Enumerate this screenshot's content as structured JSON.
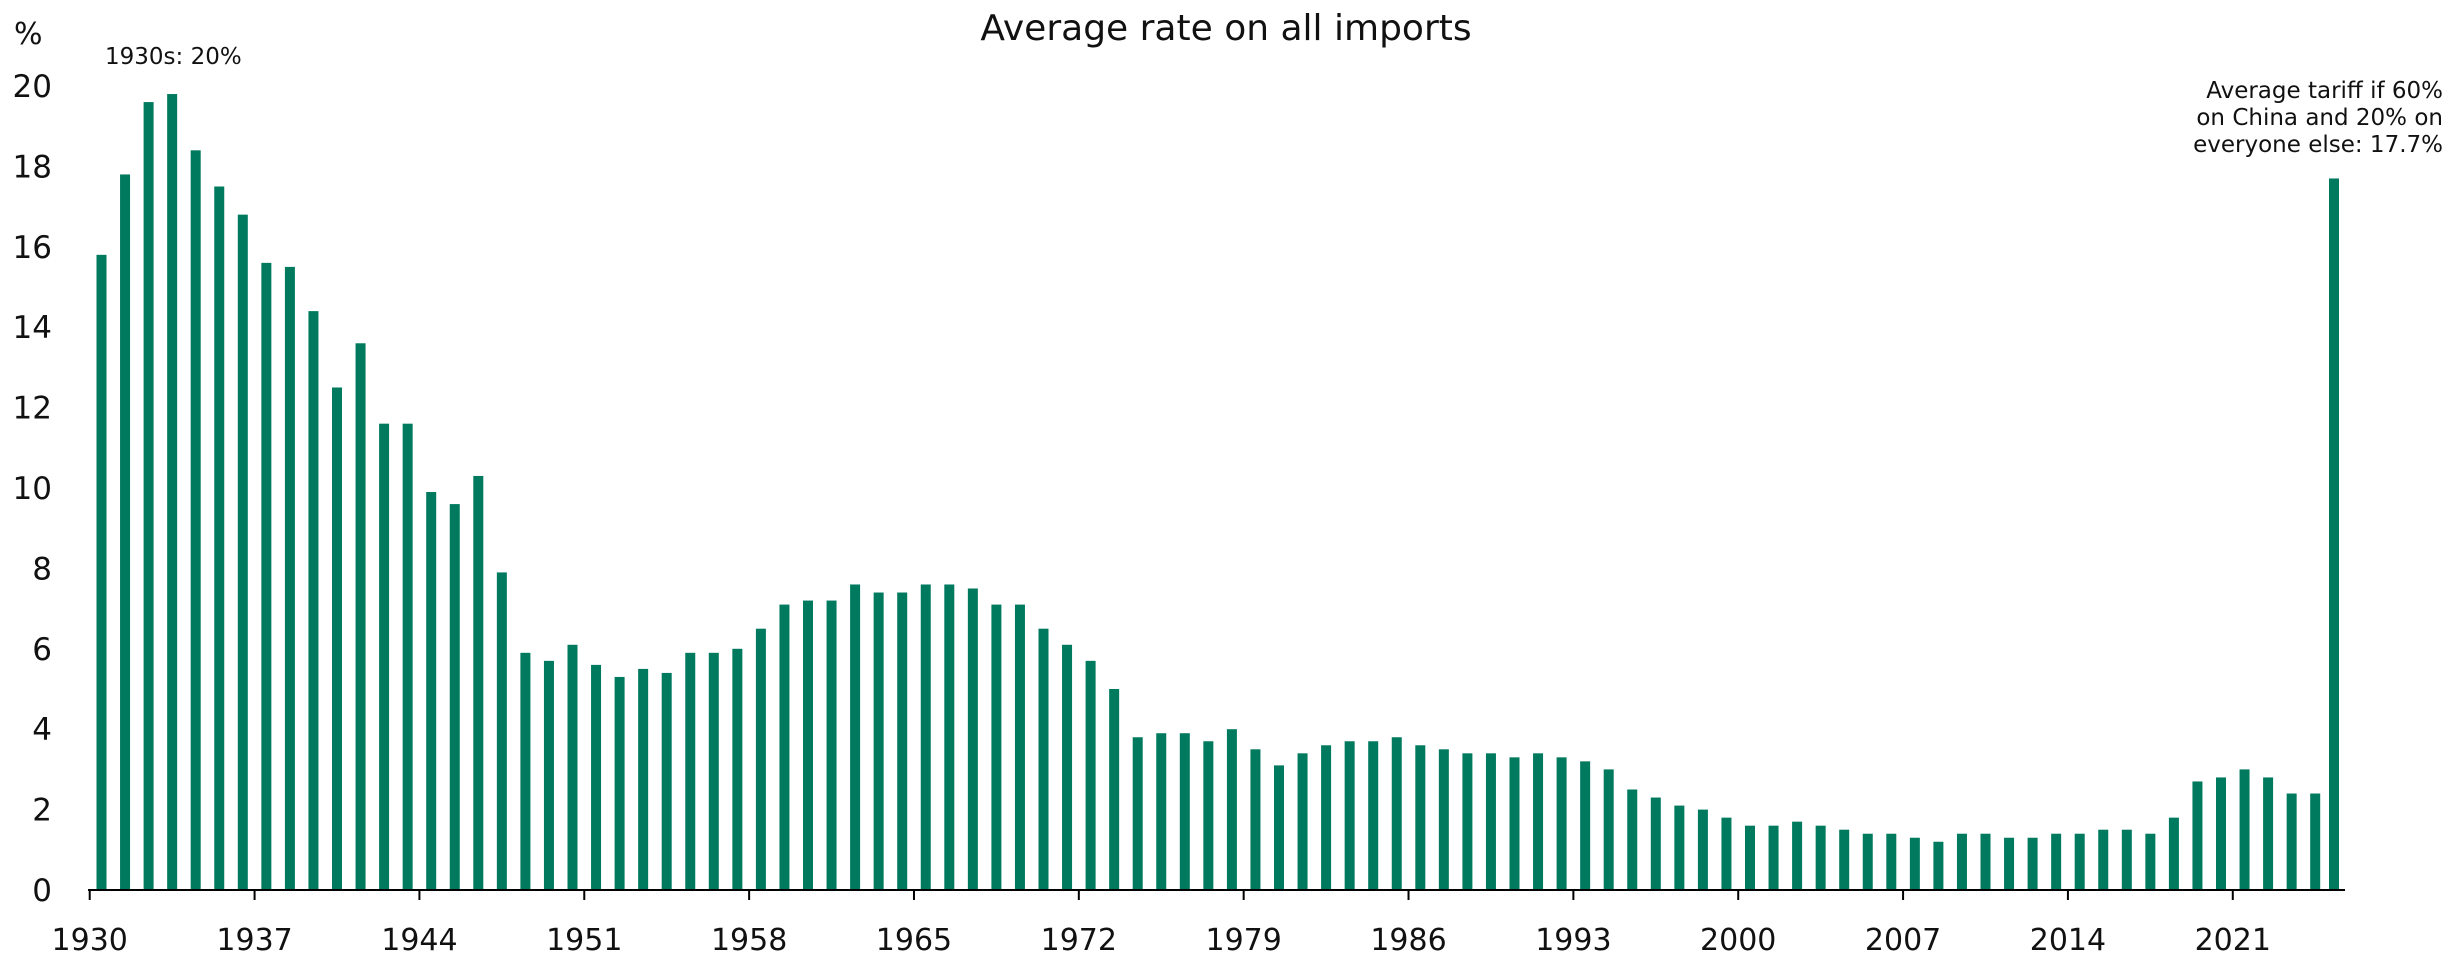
{
  "chart_data": {
    "type": "bar",
    "title": "Average rate on all imports",
    "ylabel": "%",
    "xlabel": "",
    "ylim": [
      0,
      20
    ],
    "yticks": [
      0,
      2,
      4,
      6,
      8,
      10,
      12,
      14,
      16,
      18,
      20
    ],
    "xticks": [
      "1930",
      "1937",
      "1944",
      "1951",
      "1958",
      "1965",
      "1972",
      "1979",
      "1986",
      "1993",
      "2000",
      "2007",
      "2014",
      "2021"
    ],
    "x_axis_year_start": 1930,
    "grid": false,
    "legend": "none",
    "bar_color": "#007A5E",
    "annotations": [
      {
        "text": "1930s: 20%",
        "anchor": "top-left"
      },
      {
        "lines": [
          "Average tariff if 60%",
          "on China and 20% on",
          "everyone else: 17.7%"
        ],
        "anchor": "last-bar"
      }
    ],
    "years": [
      1930,
      1931,
      1932,
      1933,
      1934,
      1935,
      1936,
      1937,
      1938,
      1939,
      1940,
      1941,
      1942,
      1943,
      1944,
      1945,
      1946,
      1947,
      1948,
      1949,
      1950,
      1951,
      1952,
      1953,
      1954,
      1955,
      1956,
      1957,
      1958,
      1959,
      1960,
      1961,
      1962,
      1963,
      1964,
      1965,
      1966,
      1967,
      1968,
      1969,
      1970,
      1971,
      1972,
      1973,
      1974,
      1975,
      1976,
      1977,
      1978,
      1979,
      1980,
      1981,
      1982,
      1983,
      1984,
      1985,
      1986,
      1987,
      1988,
      1989,
      1990,
      1991,
      1992,
      1993,
      1994,
      1995,
      1996,
      1997,
      1998,
      1999,
      2000,
      2001,
      2002,
      2003,
      2004,
      2005,
      2006,
      2007,
      2008,
      2009,
      2010,
      2011,
      2012,
      2013,
      2014,
      2015,
      2016,
      2017,
      2018,
      2019,
      2020,
      2021,
      2022,
      2023,
      2024
    ],
    "values": [
      15.8,
      17.8,
      19.6,
      19.8,
      18.4,
      17.5,
      16.8,
      15.6,
      15.5,
      14.4,
      12.5,
      13.6,
      11.6,
      11.6,
      9.9,
      9.6,
      10.3,
      7.9,
      5.9,
      5.7,
      6.1,
      5.6,
      5.3,
      5.5,
      5.4,
      5.9,
      5.9,
      6.0,
      6.5,
      7.1,
      7.2,
      7.2,
      7.6,
      7.4,
      7.4,
      7.6,
      7.6,
      7.5,
      7.1,
      7.1,
      6.5,
      6.1,
      5.7,
      5.0,
      3.8,
      3.9,
      3.9,
      3.7,
      4.0,
      3.5,
      3.1,
      3.4,
      3.6,
      3.7,
      3.7,
      3.8,
      3.6,
      3.5,
      3.4,
      3.4,
      3.3,
      3.4,
      3.3,
      3.2,
      3.0,
      2.5,
      2.3,
      2.1,
      2.0,
      1.8,
      1.6,
      1.6,
      1.7,
      1.6,
      1.5,
      1.4,
      1.4,
      1.3,
      1.2,
      1.4,
      1.4,
      1.3,
      1.3,
      1.4,
      1.4,
      1.5,
      1.5,
      1.4,
      1.8,
      2.7,
      2.8,
      3.0,
      2.8,
      2.4,
      2.4
    ],
    "scenario": {
      "value": 17.7
    }
  }
}
